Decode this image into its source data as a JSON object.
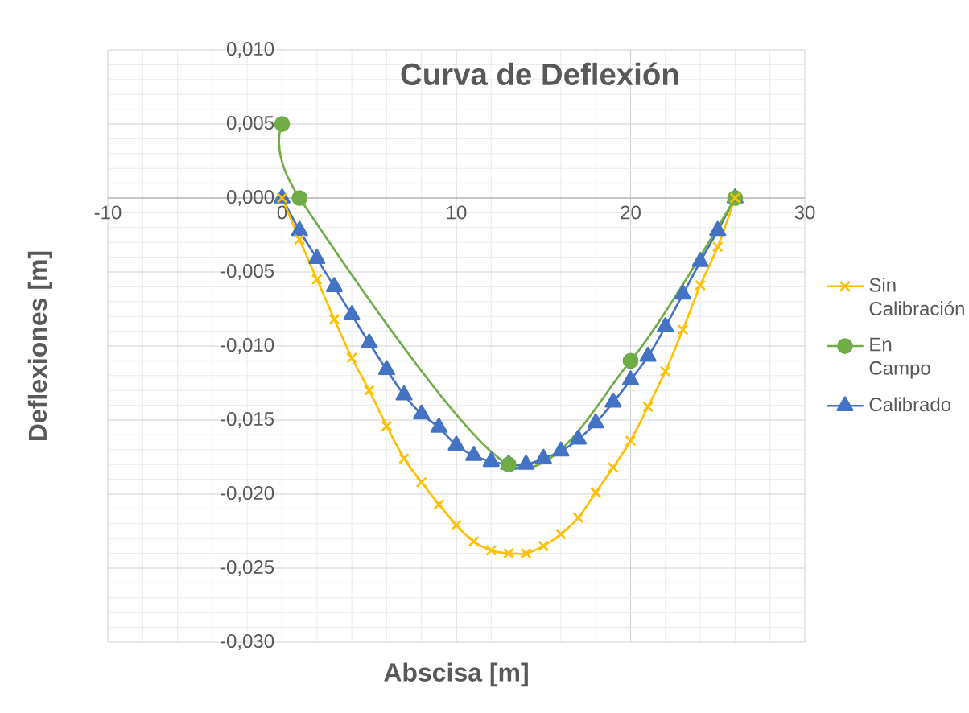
{
  "chart_data": {
    "type": "line",
    "title": "Curva de Deflexión",
    "xlabel": "Abscisa [m]",
    "ylabel": "Deflexiones [m]",
    "xlim": [
      -10,
      30
    ],
    "xticks": [
      -10,
      0,
      10,
      20,
      30
    ],
    "ylim": [
      -0.03,
      0.01
    ],
    "yticks": [
      {
        "value": -0.03,
        "label": "-0,030"
      },
      {
        "value": -0.025,
        "label": "-0,025"
      },
      {
        "value": -0.02,
        "label": "-0,020"
      },
      {
        "value": -0.015,
        "label": "-0,015"
      },
      {
        "value": -0.01,
        "label": "-0,010"
      },
      {
        "value": -0.005,
        "label": "-0,005"
      },
      {
        "value": 0,
        "label": "0,000"
      },
      {
        "value": 0.005,
        "label": "0,005"
      },
      {
        "value": 0.01,
        "label": "0,010"
      }
    ],
    "grid": true,
    "legend": "right",
    "series": [
      {
        "name": "Sin Calibración",
        "color": "#ffc000",
        "marker": "cross",
        "x": [
          0,
          1,
          2,
          3,
          4,
          5,
          6,
          7,
          8,
          9,
          10,
          11,
          12,
          13,
          14,
          15,
          16,
          17,
          18,
          19,
          20,
          21,
          22,
          23,
          24,
          25,
          26
        ],
        "values": [
          0,
          -0.0028,
          -0.0055,
          -0.0082,
          -0.0108,
          -0.013,
          -0.0154,
          -0.0176,
          -0.0192,
          -0.0207,
          -0.0221,
          -0.0232,
          -0.0238,
          -0.024,
          -0.024,
          -0.0235,
          -0.0227,
          -0.0216,
          -0.0199,
          -0.0182,
          -0.0164,
          -0.0141,
          -0.0117,
          -0.0089,
          -0.0059,
          -0.0033,
          0
        ]
      },
      {
        "name": "En Campo",
        "color": "#70ad47",
        "marker": "circle",
        "x": [
          0,
          1,
          13,
          20,
          26
        ],
        "values": [
          0.005,
          0,
          -0.018,
          -0.011,
          0
        ]
      },
      {
        "name": "Calibrado",
        "color": "#4472c4",
        "marker": "triangle",
        "x": [
          0,
          1,
          2,
          3,
          4,
          5,
          6,
          7,
          8,
          9,
          10,
          11,
          12,
          13,
          14,
          15,
          16,
          17,
          18,
          19,
          20,
          21,
          22,
          23,
          24,
          25,
          26
        ],
        "values": [
          0,
          -0.0022,
          -0.0041,
          -0.006,
          -0.0079,
          -0.0098,
          -0.0116,
          -0.0133,
          -0.0146,
          -0.0155,
          -0.0167,
          -0.0174,
          -0.0178,
          -0.018,
          -0.018,
          -0.0176,
          -0.0171,
          -0.0163,
          -0.0152,
          -0.0138,
          -0.0123,
          -0.0107,
          -0.0087,
          -0.0065,
          -0.0043,
          -0.0022,
          0
        ]
      }
    ]
  }
}
